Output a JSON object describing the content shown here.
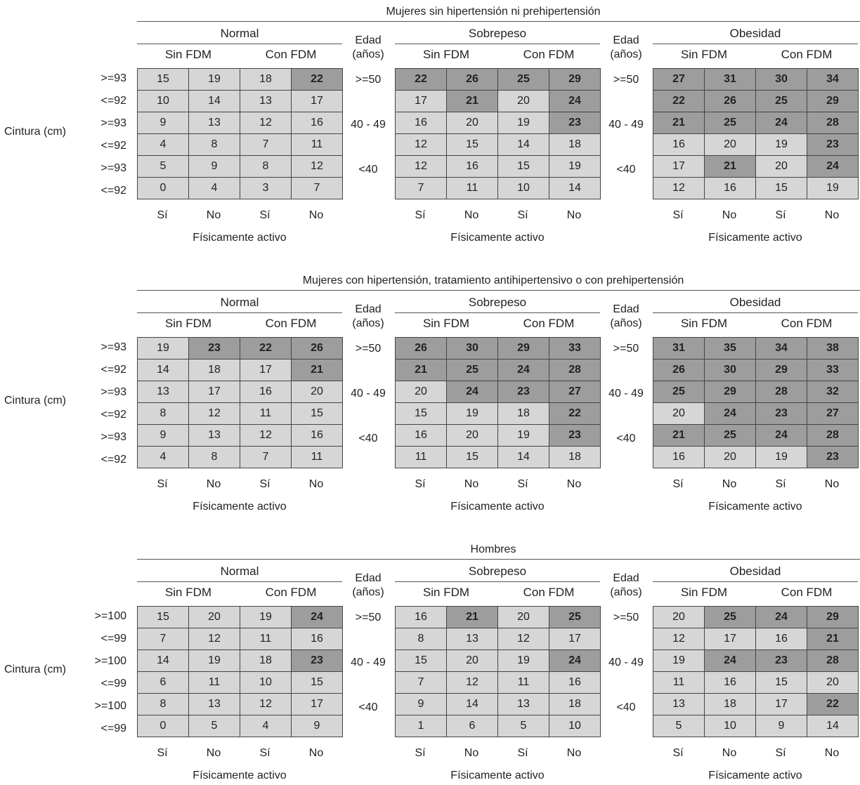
{
  "labels": {
    "edad": "Edad",
    "anos": "(años)",
    "sin_fdm": "Sin FDM",
    "con_fdm": "Con FDM",
    "si": "Sí",
    "no": "No",
    "fisicamente_activo": "Físicamente activo",
    "cintura": "Cintura (cm)",
    "age_groups": [
      ">=50",
      "40 - 49",
      "<40"
    ],
    "groups": [
      "Normal",
      "Sobrepeso",
      "Obesidad"
    ]
  },
  "sections": [
    {
      "title": "Mujeres sin hipertensión ni prehipertensión",
      "waist_labels": [
        ">=93",
        "<=92",
        ">=93",
        "<=92",
        ">=93",
        "<=92"
      ],
      "tables": [
        {
          "name": "Normal",
          "rows": [
            [
              "15",
              "19",
              "18",
              "22"
            ],
            [
              "10",
              "14",
              "13",
              "17"
            ],
            [
              "9",
              "13",
              "12",
              "16"
            ],
            [
              "4",
              "8",
              "7",
              "11"
            ],
            [
              "5",
              "9",
              "8",
              "12"
            ],
            [
              "0",
              "4",
              "3",
              "7"
            ]
          ]
        },
        {
          "name": "Sobrepeso",
          "rows": [
            [
              "22",
              "26",
              "25",
              "29"
            ],
            [
              "17",
              "21",
              "20",
              "24"
            ],
            [
              "16",
              "20",
              "19",
              "23"
            ],
            [
              "12",
              "15",
              "14",
              "18"
            ],
            [
              "12",
              "16",
              "15",
              "19"
            ],
            [
              "7",
              "11",
              "10",
              "14"
            ]
          ]
        },
        {
          "name": "Obesidad",
          "rows": [
            [
              "27",
              "31",
              "30",
              "34"
            ],
            [
              "22",
              "26",
              "25",
              "29"
            ],
            [
              "21",
              "25",
              "24",
              "28"
            ],
            [
              "16",
              "20",
              "19",
              "23"
            ],
            [
              "17",
              "21",
              "20",
              "24"
            ],
            [
              "12",
              "16",
              "15",
              "19"
            ]
          ]
        }
      ]
    },
    {
      "title": "Mujeres con hipertensión, tratamiento antihipertensivo o con prehipertensión",
      "waist_labels": [
        ">=93",
        "<=92",
        ">=93",
        "<=92",
        ">=93",
        "<=92"
      ],
      "tables": [
        {
          "name": "Normal",
          "rows": [
            [
              "19",
              "23",
              "22",
              "26"
            ],
            [
              "14",
              "18",
              "17",
              "21"
            ],
            [
              "13",
              "17",
              "16",
              "20"
            ],
            [
              "8",
              "12",
              "11",
              "15"
            ],
            [
              "9",
              "13",
              "12",
              "16"
            ],
            [
              "4",
              "8",
              "7",
              "11"
            ]
          ]
        },
        {
          "name": "Sobrepeso",
          "rows": [
            [
              "26",
              "30",
              "29",
              "33"
            ],
            [
              "21",
              "25",
              "24",
              "28"
            ],
            [
              "20",
              "24",
              "23",
              "27"
            ],
            [
              "15",
              "19",
              "18",
              "22"
            ],
            [
              "16",
              "20",
              "19",
              "23"
            ],
            [
              "11",
              "15",
              "14",
              "18"
            ]
          ]
        },
        {
          "name": "Obesidad",
          "rows": [
            [
              "31",
              "35",
              "34",
              "38"
            ],
            [
              "26",
              "30",
              "29",
              "33"
            ],
            [
              "25",
              "29",
              "28",
              "32"
            ],
            [
              "20",
              "24",
              "23",
              "27"
            ],
            [
              "21",
              "25",
              "24",
              "28"
            ],
            [
              "16",
              "20",
              "19",
              "23"
            ]
          ]
        }
      ]
    },
    {
      "title": "Hombres",
      "waist_labels": [
        ">=100",
        "<=99",
        ">=100",
        "<=99",
        ">=100",
        "<=99"
      ],
      "tables": [
        {
          "name": "Normal",
          "rows": [
            [
              "15",
              "20",
              "19",
              "24"
            ],
            [
              "7",
              "12",
              "11",
              "16"
            ],
            [
              "14",
              "19",
              "18",
              "23"
            ],
            [
              "6",
              "11",
              "10",
              "15"
            ],
            [
              "8",
              "13",
              "12",
              "17"
            ],
            [
              "0",
              "5",
              "4",
              "9"
            ]
          ]
        },
        {
          "name": "Sobrepeso",
          "rows": [
            [
              "16",
              "21",
              "20",
              "25"
            ],
            [
              "8",
              "13",
              "12",
              "17"
            ],
            [
              "15",
              "20",
              "19",
              "24"
            ],
            [
              "7",
              "12",
              "11",
              "16"
            ],
            [
              "9",
              "14",
              "13",
              "18"
            ],
            [
              "1",
              "6",
              "5",
              "10"
            ]
          ]
        },
        {
          "name": "Obesidad",
          "rows": [
            [
              "20",
              "25",
              "24",
              "29"
            ],
            [
              "12",
              "17",
              "16",
              "21"
            ],
            [
              "19",
              "24",
              "23",
              "28"
            ],
            [
              "11",
              "16",
              "15",
              "20"
            ],
            [
              "13",
              "18",
              "17",
              "22"
            ],
            [
              "5",
              "10",
              "9",
              "14"
            ]
          ]
        }
      ]
    }
  ],
  "colors": {
    "high_risk_cell": "#9d9d9d",
    "low_risk_cell": "#d6d6d6"
  },
  "high_risk_threshold": 21
}
